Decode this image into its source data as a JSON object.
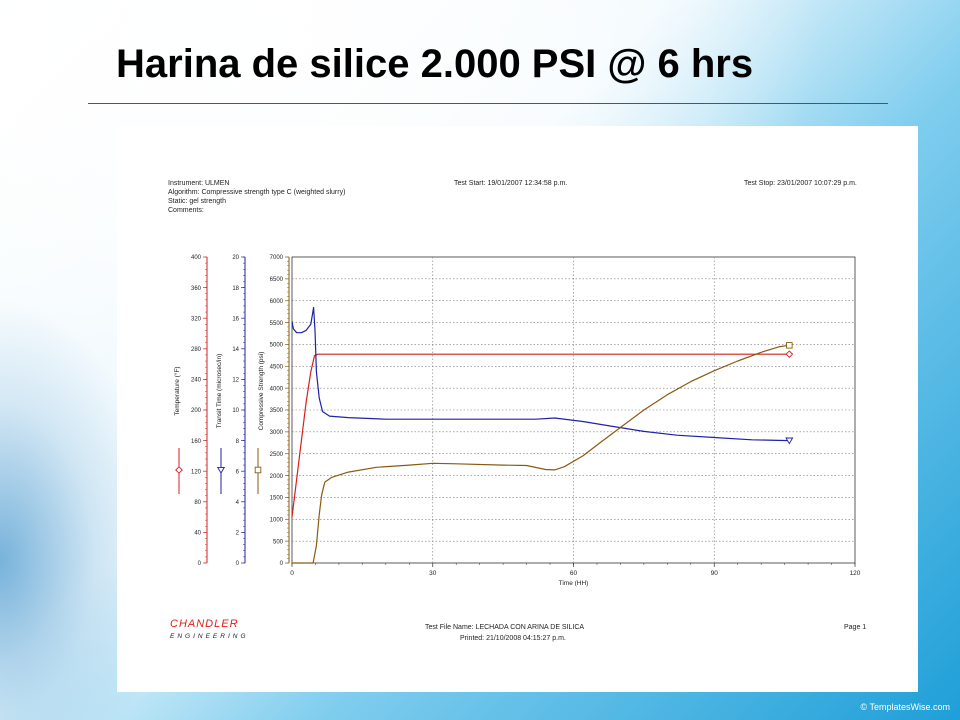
{
  "slide": {
    "title": "Harina de silice 2.000 PSI @ 6 hrs",
    "watermark": "© TemplatesWise.com"
  },
  "report": {
    "instrument": "Instrument: ULMEN",
    "algorithm": "Algorithm: Compressive strength type C (weighted slurry)",
    "static": "Static: gel strength",
    "comments": "Comments:",
    "test_start": "Test Start: 19/01/2007 12:34:58 p.m.",
    "test_stop": "Test Stop: 23/01/2007 10:07:29 p.m.",
    "test_file": "Test File Name: LECHADA CON ARINA DE SILICA",
    "printed": "Printed: 21/10/2008 04:15:27 p.m.",
    "page": "Page 1",
    "brand_name": "CHANDLER",
    "brand_sub": "ENGINEERING"
  },
  "chart_data": {
    "type": "line",
    "title": "",
    "xlabel": "Time (HH)",
    "x_ticks": [
      0,
      30,
      60,
      90,
      120
    ],
    "xlim": [
      0,
      120
    ],
    "grid": true,
    "axes": [
      {
        "key": "temp",
        "label": "Temperature (°F)",
        "min": 0,
        "max": 400,
        "ticks": [
          0,
          40,
          80,
          120,
          160,
          200,
          240,
          280,
          320,
          360,
          400
        ],
        "color": "#d42020"
      },
      {
        "key": "transit",
        "label": "Transit Time (microsec/in)",
        "min": 0,
        "max": 20,
        "ticks": [
          0,
          2,
          4,
          6,
          8,
          10,
          12,
          14,
          16,
          18,
          20
        ],
        "color": "#1e22a8"
      },
      {
        "key": "strength",
        "label": "Compressive Strength (psi)",
        "min": 0,
        "max": 7000,
        "ticks": [
          0,
          500,
          1000,
          1500,
          2000,
          2500,
          3000,
          3500,
          4000,
          4500,
          5000,
          5500,
          6000,
          6500,
          7000
        ],
        "color": "#8a5a12"
      }
    ],
    "series": [
      {
        "name": "Temperature (°F)",
        "axis": "temp",
        "color": "#d42020",
        "marker": "diamond",
        "points": [
          [
            0,
            60
          ],
          [
            1,
            110
          ],
          [
            2,
            160
          ],
          [
            3,
            210
          ],
          [
            4,
            250
          ],
          [
            4.8,
            271
          ],
          [
            5.5,
            273
          ],
          [
            10,
            273
          ],
          [
            30,
            273
          ],
          [
            60,
            273
          ],
          [
            90,
            273
          ],
          [
            106,
            273
          ]
        ]
      },
      {
        "name": "Transit Time (microsec/in)",
        "axis": "transit",
        "color": "#1e22a8",
        "marker": "triangle",
        "points": [
          [
            0,
            15.8
          ],
          [
            0.3,
            15.3
          ],
          [
            1,
            15.05
          ],
          [
            2,
            15.05
          ],
          [
            3,
            15.2
          ],
          [
            4,
            15.6
          ],
          [
            4.6,
            16.7
          ],
          [
            4.9,
            15.2
          ],
          [
            5.2,
            12.5
          ],
          [
            5.8,
            10.8
          ],
          [
            6.5,
            9.9
          ],
          [
            8,
            9.6
          ],
          [
            12,
            9.5
          ],
          [
            20,
            9.4
          ],
          [
            30,
            9.4
          ],
          [
            40,
            9.4
          ],
          [
            52,
            9.4
          ],
          [
            56,
            9.48
          ],
          [
            62,
            9.25
          ],
          [
            68,
            8.95
          ],
          [
            75,
            8.6
          ],
          [
            82,
            8.35
          ],
          [
            90,
            8.2
          ],
          [
            98,
            8.05
          ],
          [
            106,
            8.0
          ]
        ]
      },
      {
        "name": "Compressive Strength (psi)",
        "axis": "strength",
        "color": "#8a5a12",
        "marker": "square",
        "points": [
          [
            0,
            0
          ],
          [
            3,
            0
          ],
          [
            4.5,
            0
          ],
          [
            5.2,
            400
          ],
          [
            5.8,
            1100
          ],
          [
            6.3,
            1550
          ],
          [
            7,
            1850
          ],
          [
            8.5,
            1960
          ],
          [
            12,
            2080
          ],
          [
            18,
            2190
          ],
          [
            25,
            2240
          ],
          [
            30,
            2280
          ],
          [
            35,
            2270
          ],
          [
            45,
            2240
          ],
          [
            50,
            2230
          ],
          [
            54,
            2140
          ],
          [
            56,
            2130
          ],
          [
            58,
            2200
          ],
          [
            62,
            2450
          ],
          [
            66,
            2780
          ],
          [
            70,
            3100
          ],
          [
            75,
            3500
          ],
          [
            80,
            3850
          ],
          [
            85,
            4150
          ],
          [
            90,
            4400
          ],
          [
            95,
            4620
          ],
          [
            100,
            4820
          ],
          [
            104,
            4950
          ],
          [
            106,
            4980
          ]
        ]
      }
    ]
  }
}
